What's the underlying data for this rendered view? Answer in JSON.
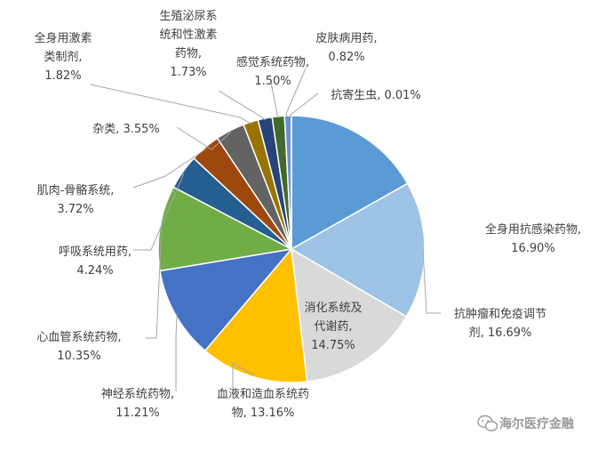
{
  "chart_data": {
    "type": "pie",
    "start_angle_deg": 0,
    "direction": "clockwise",
    "slices": [
      {
        "label": "全身用抗感染药物",
        "value_text": "16.90%",
        "value": 16.9,
        "color": "#5b9bd5"
      },
      {
        "label": "抗肿瘤和免疫调节剂",
        "value_text": "16.69%",
        "value": 16.69,
        "color": "#9dc3e6"
      },
      {
        "label": "消化系统及代谢药",
        "value_text": "14.75%",
        "value": 14.75,
        "color": "#d9d9d9"
      },
      {
        "label": "血液和造血系统药物",
        "value_text": "13.16%",
        "value": 13.16,
        "color": "#ffc000"
      },
      {
        "label": "神经系统药物",
        "value_text": "11.21%",
        "value": 11.21,
        "color": "#4472c4"
      },
      {
        "label": "心血管系统药物",
        "value_text": "10.35%",
        "value": 10.35,
        "color": "#70ad47"
      },
      {
        "label": "呼吸系统用药",
        "value_text": "4.24%",
        "value": 4.24,
        "color": "#255e91"
      },
      {
        "label": "肌肉-骨骼系统",
        "value_text": "3.72%",
        "value": 3.72,
        "color": "#9e480e"
      },
      {
        "label": "杂类",
        "value_text": "3.55%",
        "value": 3.55,
        "color": "#636363"
      },
      {
        "label": "全身用激素类制剂",
        "value_text": "1.82%",
        "value": 1.82,
        "color": "#997300"
      },
      {
        "label": "生殖泌尿系统和性激素药物",
        "value_text": "1.73%",
        "value": 1.73,
        "color": "#264478"
      },
      {
        "label": "感觉系统药物",
        "value_text": "1.50%",
        "value": 1.5,
        "color": "#43682b"
      },
      {
        "label": "皮肤病用药",
        "value_text": "0.82%",
        "value": 0.82,
        "color": "#698ed0"
      },
      {
        "label": "抗寄生虫",
        "value_text": "0.01%",
        "value": 0.01,
        "color": "#a9d18e"
      }
    ]
  },
  "labels": [
    {
      "lines": [
        "全身用抗感染药物,",
        "16.90%"
      ]
    },
    {
      "lines": [
        "抗肿瘤和免疫调节",
        "剂, 16.69%"
      ]
    },
    {
      "lines": [
        "消化系统及",
        "代谢药,",
        "14.75%"
      ]
    },
    {
      "lines": [
        "血液和造血系统药",
        "物, 13.16%"
      ]
    },
    {
      "lines": [
        "神经系统药物,",
        "11.21%"
      ]
    },
    {
      "lines": [
        "心血管系统药物,",
        "10.35%"
      ]
    },
    {
      "lines": [
        "呼吸系统用药,",
        "4.24%"
      ]
    },
    {
      "lines": [
        "肌肉-骨骼系统,",
        "3.72%"
      ]
    },
    {
      "lines": [
        "杂类, 3.55%"
      ]
    },
    {
      "lines": [
        "全身用激素",
        "类制剂,",
        "1.82%"
      ]
    },
    {
      "lines": [
        "生殖泌尿系",
        "统和性激素",
        "药物,",
        "1.73%"
      ]
    },
    {
      "lines": [
        "感觉系统药物,",
        "1.50%"
      ]
    },
    {
      "lines": [
        "皮肤病用药,",
        "0.82%"
      ]
    },
    {
      "lines": [
        "抗寄生虫, 0.01%"
      ]
    }
  ],
  "watermark": {
    "text": "海尔医疗金融",
    "icon": "wechat-icon"
  }
}
